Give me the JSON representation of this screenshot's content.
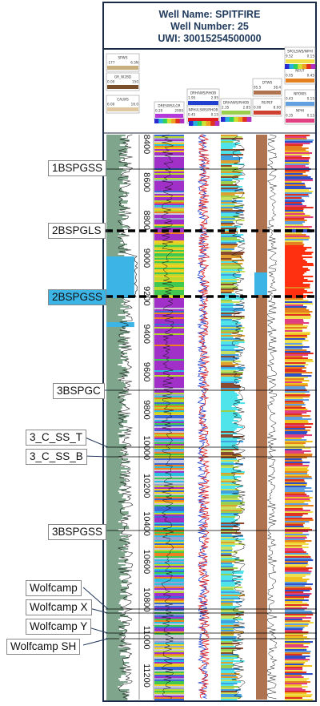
{
  "header": {
    "well_name": "Well Name: SPITFIRE",
    "well_number": "Well Number: 25",
    "uwi": "UWI: 30015254500000"
  },
  "depth_track": {
    "ticks": [
      "8400",
      "8600",
      "8800",
      "9000",
      "9200",
      "9400",
      "9600",
      "9800",
      "10000",
      "10200",
      "10400",
      "10600",
      "10800",
      "11000",
      "11200"
    ]
  },
  "track_headers": {
    "t1": [
      {
        "name": "SPWS",
        "min": "-177",
        "max": "6.5N"
      },
      {
        "name": "GR_W2BD",
        "min": "0.00",
        "max": "150"
      },
      {
        "name": "CALWS",
        "min": "6.00",
        "max": "16.0"
      }
    ],
    "t2": [
      {
        "name": "DRESWS/LGR",
        "min": "0.20",
        "max": "2000"
      }
    ],
    "t3": [
      {
        "name": "DRHAWS/RHOB",
        "min": "1.95",
        "max": "2.95"
      },
      {
        "name": "NPHI/LSWS/RHOB",
        "min": "0.45",
        "max": "0.15"
      }
    ],
    "t4": [
      {
        "name": "DRHAWS/RHOB",
        "min": "2.35",
        "max": "2.85"
      }
    ],
    "t5": [
      {
        "name": "DTWS",
        "min": "95.5",
        "max": "38.4"
      },
      {
        "name": "PE/PEF",
        "min": "0.00",
        "max": "8.00"
      }
    ],
    "t6": [
      {
        "name": "SPOLSWS/NPHI",
        "min": "9.52",
        "max": "0.15"
      },
      {
        "name": "NEUT",
        "min": "0.05",
        "max": "0.45"
      },
      {
        "name": "NPOWS",
        "min": "0.43",
        "max": "0.15"
      },
      {
        "name": "NPHI",
        "min": "0.35",
        "max": "0.15"
      }
    ]
  },
  "formation_tops": [
    {
      "name": "1BSPGSS",
      "highlight": false,
      "style": "thin"
    },
    {
      "name": "2BSPGLS",
      "highlight": false,
      "style": "dashed"
    },
    {
      "name": "2BSPGSS",
      "highlight": true,
      "style": "dashed"
    },
    {
      "name": "3BSPGC",
      "highlight": false,
      "style": "thin"
    },
    {
      "name": "3_C_SS_T",
      "highlight": false,
      "style": "thin"
    },
    {
      "name": "3_C_SS_B",
      "highlight": false,
      "style": "thin"
    },
    {
      "name": "3BSPGSS",
      "highlight": false,
      "style": "thin"
    },
    {
      "name": "Wolfcamp",
      "highlight": false,
      "style": "thin"
    },
    {
      "name": "Wolfcamp X",
      "highlight": false,
      "style": "thin"
    },
    {
      "name": "Wolfcamp Y",
      "highlight": false,
      "style": "thin"
    },
    {
      "name": "Wolfcamp SH",
      "highlight": false,
      "style": "thin"
    }
  ],
  "colors": {
    "frame": "#1a2a44",
    "gr_fill": "#7fa68c",
    "highlight_fill": "#3db4e6",
    "resistivity_purple": "#b43bd9",
    "density_cyan": "#4fe3ea",
    "pe_brown": "#b07350",
    "neutron_red": "#e02020",
    "density_blue": "#2040d0"
  }
}
